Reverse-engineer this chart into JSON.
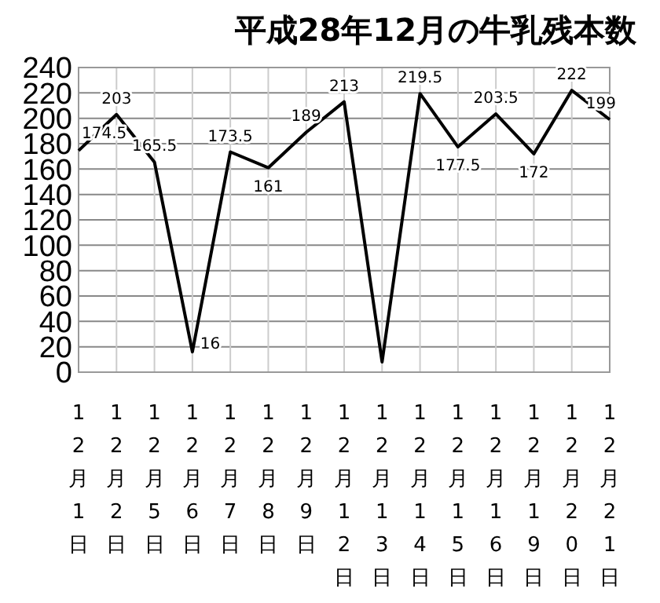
{
  "chart_data": {
    "type": "line",
    "title": "平成28年12月の牛乳残本数",
    "categories": [
      "12月1日",
      "12月2日",
      "12月5日",
      "12月6日",
      "12月7日",
      "12月8日",
      "12月9日",
      "12月12日",
      "12月13日",
      "12月14日",
      "12月15日",
      "12月16日",
      "12月19日",
      "12月20日",
      "12月21日"
    ],
    "series": [
      {
        "color": "#000000",
        "values": [
          174.5,
          203,
          165.5,
          16,
          173.5,
          161,
          189,
          213,
          8,
          219.5,
          177.5,
          203.5,
          172,
          222,
          199
        ],
        "value_labels": [
          "174.5",
          "203",
          "165.5",
          "16",
          "173.5",
          "161",
          "189",
          "213",
          null,
          "219.5",
          "177.5",
          "203.5",
          "172",
          "222",
          "199"
        ]
      }
    ],
    "ylim": [
      0,
      240
    ],
    "yticks": [
      0,
      20,
      40,
      60,
      80,
      100,
      120,
      140,
      160,
      180,
      200,
      220,
      240
    ],
    "grid": true,
    "marker": "none",
    "line_style": "solid"
  }
}
